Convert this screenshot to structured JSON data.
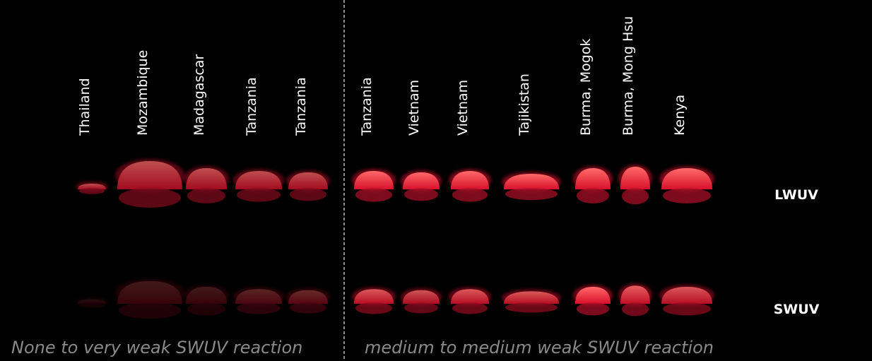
{
  "samples": [
    {
      "label": "Thailand"
    },
    {
      "label": "Mozambique"
    },
    {
      "label": "Madagascar"
    },
    {
      "label": "Tanzania"
    },
    {
      "label": "Tanzania"
    },
    {
      "label": "Tanzania"
    },
    {
      "label": "Vietnam"
    },
    {
      "label": "Vietnam"
    },
    {
      "label": "Tajikistan"
    },
    {
      "label": "Burma, Mogok"
    },
    {
      "label": "Burma, Mong Hsu"
    },
    {
      "label": "Kenya"
    }
  ],
  "rows": [
    {
      "label": "LWUV"
    },
    {
      "label": "SWUV"
    }
  ],
  "captions": {
    "left": "None to very weak SWUV reaction",
    "right": "medium to medium weak SWUV reaction"
  }
}
